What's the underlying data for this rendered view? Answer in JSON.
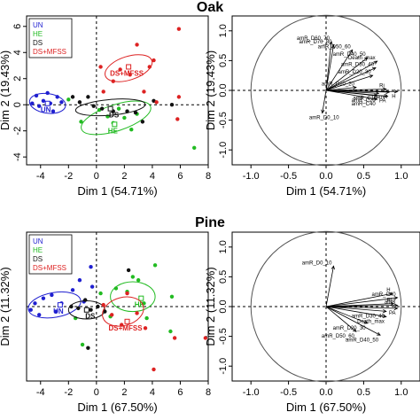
{
  "chart_data": [
    {
      "type": "scatter",
      "title": "Oak",
      "xlabel": "Dim 1 (54.71%)",
      "ylabel": "Dim 2 (19.43%)",
      "xlim": [
        -5,
        8
      ],
      "ylim": [
        -4.6,
        6.8
      ],
      "xticks": [
        -4,
        -2,
        0,
        2,
        4,
        6,
        8
      ],
      "yticks": [
        -4,
        -2,
        0,
        2,
        4,
        6
      ],
      "grid": false,
      "legend_position": "top-left",
      "series": [
        {
          "name": "UN",
          "color": "#1f1fd0",
          "points": [
            [
              -4.6,
              0.1
            ],
            [
              -4.3,
              0.7
            ],
            [
              -4.1,
              -0.1
            ],
            [
              -3.8,
              0.3
            ],
            [
              -3.5,
              0.9
            ],
            [
              -3.3,
              0.1
            ],
            [
              -3.1,
              -0.5
            ],
            [
              -2.8,
              0.6
            ],
            [
              -2.5,
              0.2
            ]
          ],
          "ellipse": {
            "cx": -3.5,
            "cy": 0.1,
            "rx": 1.3,
            "ry": 0.75,
            "angle": 8
          },
          "centroid": [
            -3.5,
            0.1
          ],
          "label": "UN"
        },
        {
          "name": "HE",
          "color": "#22bb22",
          "points": [
            [
              -2.0,
              0.4
            ],
            [
              -1.1,
              -1.3
            ],
            [
              0.2,
              -0.4
            ],
            [
              0.8,
              -0.9
            ],
            [
              1.2,
              -1.4
            ],
            [
              1.6,
              -0.3
            ],
            [
              2.0,
              -1.0
            ],
            [
              2.5,
              -1.9
            ],
            [
              2.9,
              -0.7
            ],
            [
              7.0,
              -3.3
            ]
          ],
          "ellipse": {
            "cx": 1.4,
            "cy": -1.0,
            "rx": 2.6,
            "ry": 1.0,
            "angle": -18
          },
          "centroid": [
            1.3,
            -1.5
          ],
          "label": "HE"
        },
        {
          "name": "DS",
          "color": "#111111",
          "points": [
            [
              -1.7,
              0.6
            ],
            [
              -1.2,
              0.2
            ],
            [
              -0.6,
              0.6
            ],
            [
              -0.2,
              -0.1
            ],
            [
              0.4,
              -0.3
            ],
            [
              1.2,
              -0.5
            ],
            [
              2.2,
              -0.5
            ],
            [
              2.8,
              -0.6
            ],
            [
              3.3,
              -1.3
            ],
            [
              4.1,
              0.3
            ],
            [
              5.4,
              0.0
            ]
          ],
          "ellipse": {
            "cx": 1.0,
            "cy": -0.2,
            "rx": 2.5,
            "ry": 0.6,
            "angle": -5
          },
          "centroid": [
            1.0,
            -0.3
          ],
          "label": "DS"
        },
        {
          "name": "DS+MFSS",
          "color": "#dd2222",
          "points": [
            [
              0.3,
              2.9
            ],
            [
              0.5,
              1.0
            ],
            [
              1.2,
              1.8
            ],
            [
              1.7,
              2.7
            ],
            [
              2.4,
              2.3
            ],
            [
              2.9,
              4.6
            ],
            [
              3.4,
              1.0
            ],
            [
              3.8,
              2.9
            ],
            [
              4.1,
              3.4
            ],
            [
              4.3,
              0.2
            ],
            [
              5.8,
              -1.1
            ],
            [
              5.9,
              0.6
            ],
            [
              5.9,
              5.8
            ]
          ],
          "ellipse": {
            "cx": 2.3,
            "cy": 2.8,
            "rx": 1.75,
            "ry": 0.9,
            "angle": -18
          },
          "centroid": [
            2.3,
            2.9
          ],
          "label": "DS+MFSS"
        }
      ]
    },
    {
      "type": "line",
      "subtype": "correlation-circle",
      "title": "",
      "xlabel": "Dim 1 (54.71%)",
      "ylabel": "Dim 2 (19.43%)",
      "xlim": [
        -1.25,
        1.25
      ],
      "ylim": [
        -1.25,
        1.25
      ],
      "xticks": [
        -1.0,
        -0.5,
        0.0,
        0.5,
        1.0
      ],
      "yticks": [
        -1.0,
        -0.5,
        0.0,
        0.5,
        1.0
      ],
      "grid": false,
      "vectors": [
        {
          "name": "amR_D60_70",
          "x": 0.07,
          "y": 0.82
        },
        {
          "name": "amR_D70_80",
          "x": 0.1,
          "y": 0.76
        },
        {
          "name": "amR_D50_60",
          "x": 0.35,
          "y": 0.68
        },
        {
          "name": "amR_D40_50",
          "x": 0.55,
          "y": 0.55
        },
        {
          "name": "Death_max",
          "x": 0.68,
          "y": 0.49
        },
        {
          "name": "amR_D30_40",
          "x": 0.66,
          "y": 0.38
        },
        {
          "name": "amR_D20_30",
          "x": 0.62,
          "y": 0.25
        },
        {
          "name": "amR_D10_20",
          "x": 0.4,
          "y": 0.05
        },
        {
          "name": "Ri",
          "x": 0.8,
          "y": 0.02
        },
        {
          "name": "H",
          "x": 0.95,
          "y": -0.02
        },
        {
          "name": "amR",
          "x": 0.84,
          "y": -0.03
        },
        {
          "name": "amR_C10",
          "x": 0.7,
          "y": -0.05
        },
        {
          "name": "amR_C20",
          "x": 0.68,
          "y": -0.09
        },
        {
          "name": "PA",
          "x": 0.82,
          "y": -0.1
        },
        {
          "name": "amR_C40",
          "x": 0.68,
          "y": -0.15
        },
        {
          "name": "amR_D0_10",
          "x": -0.05,
          "y": -0.38
        }
      ]
    },
    {
      "type": "scatter",
      "title": "Pine",
      "xlabel": "Dim 1 (67.50%)",
      "ylabel": "Dim 2 (11.32%)",
      "xlim": [
        -5,
        8
      ],
      "ylim": [
        -4.5,
        4.5
      ],
      "xticks": [
        -4,
        -2,
        0,
        2,
        4,
        6,
        8
      ],
      "yticks": [],
      "grid": false,
      "legend_position": "top-left",
      "series": [
        {
          "name": "UN",
          "color": "#1f1fd0",
          "points": [
            [
              -4.7,
              -0.2
            ],
            [
              -4.4,
              0.2
            ],
            [
              -4.1,
              -0.5
            ],
            [
              -3.8,
              0.5
            ],
            [
              -3.2,
              0.7
            ],
            [
              -2.9,
              -0.3
            ],
            [
              -2.5,
              0.2
            ],
            [
              -1.7,
              1.0
            ],
            [
              -1.2,
              1.6
            ],
            [
              -0.9,
              0.3
            ],
            [
              -0.4,
              2.4
            ],
            [
              -0.3,
              1.2
            ]
          ],
          "ellipse": {
            "cx": -3.0,
            "cy": 0.1,
            "rx": 1.9,
            "ry": 0.75,
            "angle": -10
          },
          "centroid": [
            -2.6,
            0.1
          ],
          "label": "UN"
        },
        {
          "name": "HE",
          "color": "#22bb22",
          "points": [
            [
              -1.5,
              -0.7
            ],
            [
              0.3,
              0.8
            ],
            [
              1.0,
              -0.6
            ],
            [
              1.4,
              1.1
            ],
            [
              2.2,
              0.9
            ],
            [
              2.6,
              1.8
            ],
            [
              3.0,
              1.6
            ],
            [
              3.4,
              0.2
            ],
            [
              3.6,
              -0.7
            ],
            [
              4.2,
              2.5
            ],
            [
              5.3,
              -1.5
            ],
            [
              5.4,
              0.6
            ],
            [
              -1.0,
              -2.3
            ]
          ],
          "ellipse": {
            "cx": 2.6,
            "cy": 0.6,
            "rx": 1.6,
            "ry": 0.9,
            "angle": 0
          },
          "centroid": [
            3.2,
            0.5
          ],
          "label": "HE"
        },
        {
          "name": "DS",
          "color": "#111111",
          "points": [
            [
              -1.8,
              0.0
            ],
            [
              -1.3,
              -0.1
            ],
            [
              -0.8,
              0.4
            ],
            [
              -0.4,
              -0.2
            ],
            [
              0.1,
              0.0
            ],
            [
              0.6,
              -0.3
            ],
            [
              -0.6,
              -2.5
            ],
            [
              2.3,
              2.2
            ]
          ],
          "ellipse": {
            "cx": -0.7,
            "cy": -0.2,
            "rx": 1.3,
            "ry": 0.55,
            "angle": 0
          },
          "centroid": [
            -0.7,
            -0.2
          ],
          "label": "DS"
        },
        {
          "name": "DS+MFSS",
          "color": "#dd2222",
          "points": [
            [
              0.5,
              0.1
            ],
            [
              1.1,
              -0.5
            ],
            [
              1.8,
              -1.1
            ],
            [
              2.2,
              0.8
            ],
            [
              2.9,
              -0.4
            ],
            [
              3.5,
              -1.3
            ],
            [
              4.1,
              -3.8
            ],
            [
              5.6,
              -1.9
            ],
            [
              7.8,
              -1.9
            ]
          ],
          "ellipse": {
            "cx": 1.9,
            "cy": -0.3,
            "rx": 1.5,
            "ry": 0.85,
            "angle": -15
          },
          "centroid": [
            2.2,
            -0.9
          ],
          "label": "DS+MFSS"
        }
      ]
    },
    {
      "type": "line",
      "subtype": "correlation-circle",
      "title": "",
      "xlabel": "Dim 1 (67.50%)",
      "ylabel": "Dim 2 (11.32%)",
      "xlim": [
        -1.25,
        1.25
      ],
      "ylim": [
        -1.25,
        1.25
      ],
      "xticks": [
        -1.0,
        -0.5,
        0.0,
        0.5,
        1.0
      ],
      "yticks": [
        -1.0,
        -0.5,
        0.0,
        0.5,
        1.0
      ],
      "grid": false,
      "vectors": [
        {
          "name": "amR_D0_10",
          "x": 0.1,
          "y": 0.68
        },
        {
          "name": "H",
          "x": 0.88,
          "y": 0.22
        },
        {
          "name": "amR_C40",
          "x": 0.95,
          "y": 0.15
        },
        {
          "name": "Ri",
          "x": 0.9,
          "y": 0.05
        },
        {
          "name": "amR",
          "x": 0.95,
          "y": 0.02
        },
        {
          "name": "PA",
          "x": 0.95,
          "y": -0.03
        },
        {
          "name": "amR_D30_40",
          "x": 0.8,
          "y": -0.08
        },
        {
          "name": "Death_max",
          "x": 0.8,
          "y": -0.17
        },
        {
          "name": "amR_D20_30",
          "x": 0.55,
          "y": -0.28
        },
        {
          "name": "amR_D50_60",
          "x": 0.4,
          "y": -0.42
        },
        {
          "name": "amR_D40_50",
          "x": 0.72,
          "y": -0.48
        }
      ]
    }
  ]
}
